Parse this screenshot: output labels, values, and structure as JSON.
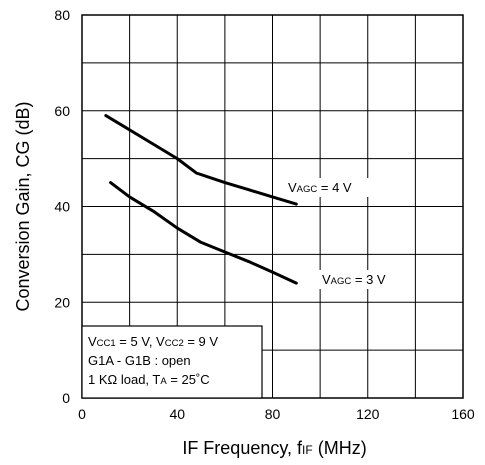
{
  "chart_data": {
    "type": "line",
    "xlabel": {
      "main": "IF Frequency, f",
      "sub": "IF",
      "unit": " (MHz)"
    },
    "ylabel": "Conversion Gain, CG (dB)",
    "xlim": [
      0,
      160
    ],
    "ylim": [
      0,
      80
    ],
    "x_ticks": [
      0,
      40,
      80,
      120,
      160
    ],
    "y_ticks": [
      0,
      20,
      40,
      60,
      80
    ],
    "x_grid_step": 20,
    "y_grid_step": 10,
    "grid": true,
    "series": [
      {
        "name": {
          "pre": "V",
          "sub": "AGC",
          "post": " = 4 V"
        },
        "x": [
          10,
          20,
          30,
          40,
          48,
          60,
          70,
          80,
          90
        ],
        "y": [
          59,
          56,
          53,
          50,
          47,
          45,
          43.5,
          42,
          40.5
        ]
      },
      {
        "name": {
          "pre": "V",
          "sub": "AGC",
          "post": " = 3 V"
        },
        "x": [
          12,
          20,
          30,
          40,
          50,
          60,
          70,
          80,
          90
        ],
        "y": [
          45,
          42,
          39,
          35.5,
          32.5,
          30.5,
          28.5,
          26.3,
          24
        ]
      }
    ],
    "conditions": [
      [
        {
          "t": "V"
        },
        {
          "t": "CC1",
          "sub": true
        },
        {
          "t": " = 5 V, V"
        },
        {
          "t": "CC2",
          "sub": true
        },
        {
          "t": " = 9 V"
        }
      ],
      [
        {
          "t": "G1A - G1B : open"
        }
      ],
      [
        {
          "t": "1 KΩ load, T"
        },
        {
          "t": "A",
          "sub": true
        },
        {
          "t": " = 25˚C"
        }
      ]
    ]
  }
}
